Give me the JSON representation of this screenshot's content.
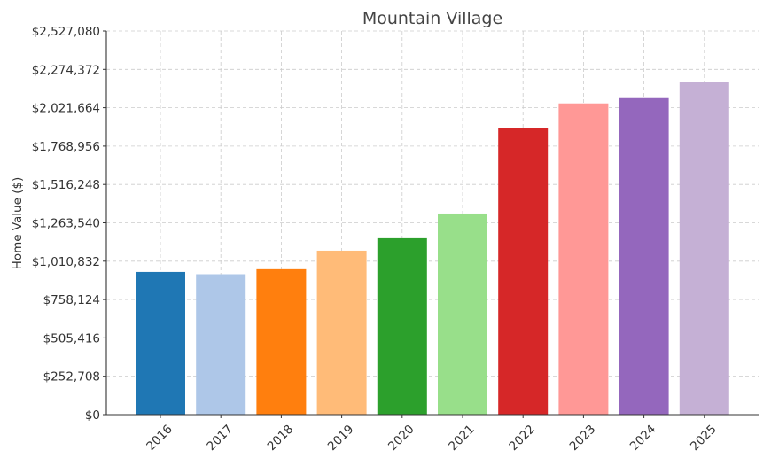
{
  "chart_data": {
    "type": "bar",
    "title": "Mountain Village",
    "xlabel": "",
    "ylabel": "Home Value ($)",
    "categories": [
      "2016",
      "2017",
      "2018",
      "2019",
      "2020",
      "2021",
      "2022",
      "2023",
      "2024",
      "2025"
    ],
    "values": [
      940000,
      925000,
      958000,
      1080000,
      1162000,
      1325000,
      1890000,
      2050000,
      2085000,
      2190000
    ],
    "colors": [
      "#1f77b4",
      "#aec7e8",
      "#ff7f0e",
      "#ffbb78",
      "#2ca02c",
      "#98df8a",
      "#d62728",
      "#ff9896",
      "#9467bd",
      "#c5b0d5"
    ],
    "ylim": [
      0,
      2527080
    ],
    "yticks": [
      0,
      252708,
      505416,
      758124,
      1010832,
      1263540,
      1516248,
      1768956,
      2021664,
      2274372,
      2527080
    ],
    "ytick_labels": [
      "$0",
      "$252,708",
      "$505,416",
      "$758,124",
      "$1,010,832",
      "$1,263,540",
      "$1,516,248",
      "$1,768,956",
      "$2,021,664",
      "$2,274,372",
      "$2,527,080"
    ],
    "grid": true,
    "legend": "none"
  }
}
